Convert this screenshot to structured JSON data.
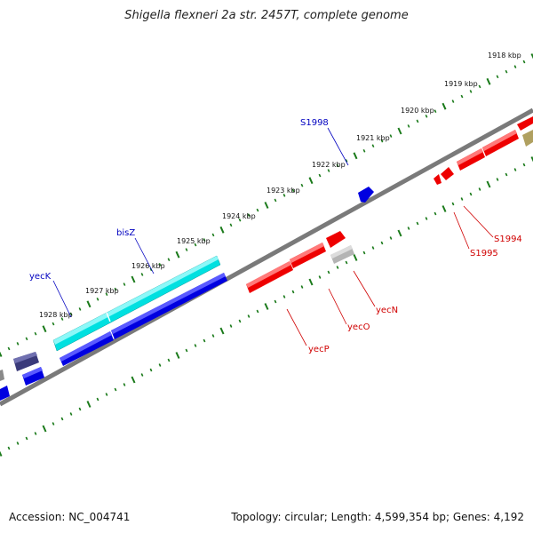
{
  "title": "Shigella flexneri 2a str. 2457T, complete genome",
  "footer": {
    "accession": "Accession: NC_004741",
    "summary": "Topology: circular; Length: 4,599,354 bp; Genes: 4,192"
  },
  "ruler": {
    "ticks": [
      "1918 kbp",
      "1919 kbp",
      "1920 kbp",
      "1921 kbp",
      "1922 kbp",
      "1923 kbp",
      "1924 kbp",
      "1925 kbp",
      "1926 kbp",
      "1927 kbp",
      "1928 kbp"
    ]
  },
  "genes": {
    "forward": [
      {
        "name": "S1998",
        "color": "#0000c0"
      },
      {
        "name": "bisZ",
        "color": "#0000c0"
      },
      {
        "name": "yecK",
        "color": "#0000c0"
      }
    ],
    "reverse": [
      {
        "name": "S1994",
        "color": "#d00000"
      },
      {
        "name": "S1995",
        "color": "#d00000"
      },
      {
        "name": "yecN",
        "color": "#d00000"
      },
      {
        "name": "yecO",
        "color": "#d00000"
      },
      {
        "name": "yecP",
        "color": "#d00000"
      }
    ]
  },
  "colors": {
    "backbone": "#7a7a7a",
    "tick_major": "#1a7a1a",
    "tick_minor": "#1a7a1a",
    "gene_blue": "#0000e0",
    "gene_cyan": "#00e0e0",
    "gene_red": "#ee0000",
    "gene_gray": "#b4b4b4",
    "gene_navy": "#3a3a7a",
    "gene_olive": "#b0a060"
  }
}
